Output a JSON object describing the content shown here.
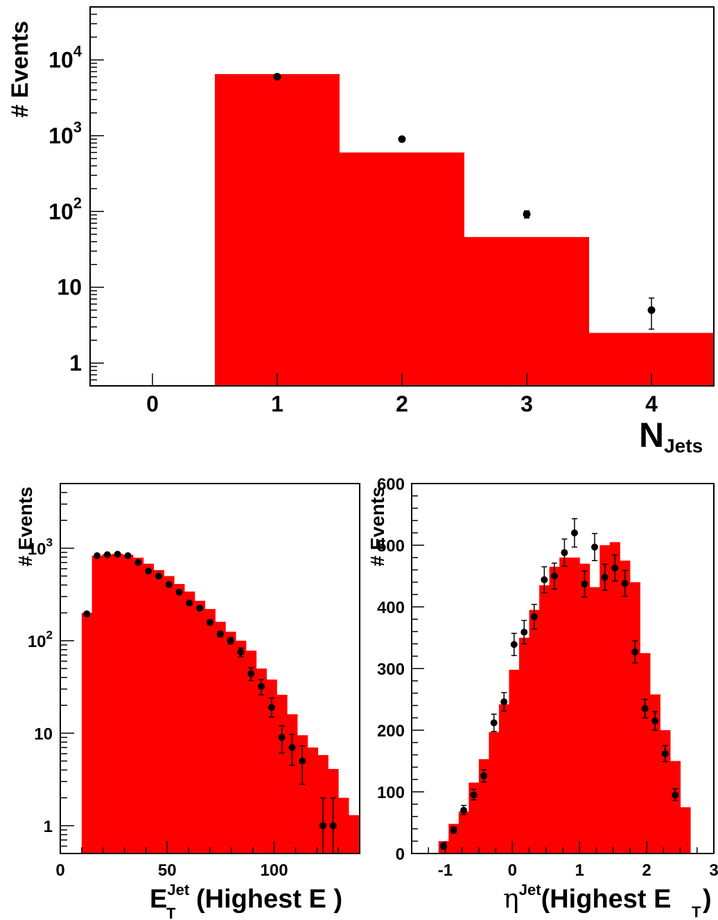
{
  "colors": {
    "histogram_fill": "#ff0000",
    "marker": "#000000",
    "frame": "#000000"
  },
  "chart_data": [
    {
      "type": "bar",
      "ylog": true,
      "xlim": [
        -0.5,
        4.5
      ],
      "ylim": [
        0.5,
        50000
      ],
      "xlabel_main": "N",
      "xlabel_sub": "Jets",
      "ylabel": "# Events",
      "x_ticks": [
        "0",
        "1",
        "2",
        "3",
        "4"
      ],
      "y_ticks": [
        {
          "value": 1,
          "base": "1",
          "exp": ""
        },
        {
          "value": 10,
          "base": "10",
          "exp": ""
        },
        {
          "value": 100,
          "base": "10",
          "exp": "2"
        },
        {
          "value": 1000,
          "base": "10",
          "exp": "3"
        },
        {
          "value": 10000,
          "base": "10",
          "exp": "4"
        }
      ],
      "bins": [
        {
          "lo": 0.5,
          "hi": 1.5,
          "value": 6500
        },
        {
          "lo": 1.5,
          "hi": 2.5,
          "value": 600
        },
        {
          "lo": 2.5,
          "hi": 3.5,
          "value": 46
        },
        {
          "lo": 3.5,
          "hi": 4.5,
          "value": 2.5
        }
      ],
      "points": [
        {
          "x": 1,
          "y": 6000,
          "lo": 5920,
          "hi": 6080
        },
        {
          "x": 2,
          "y": 900,
          "lo": 870,
          "hi": 930
        },
        {
          "x": 3,
          "y": 92,
          "lo": 82,
          "hi": 102
        },
        {
          "x": 4,
          "y": 5,
          "lo": 2.8,
          "hi": 7.2
        }
      ]
    },
    {
      "type": "bar",
      "ylog": true,
      "xlim": [
        0,
        140
      ],
      "ylim": [
        0.5,
        5000
      ],
      "xlabel_main": "E",
      "xlabel_sup": "Jet",
      "xlabel_sub": "T",
      "xlabel_rest": "(Highest E )",
      "ylabel": "# Events",
      "x_ticks": [
        "0",
        "50",
        "100"
      ],
      "y_ticks": [
        {
          "value": 1,
          "base": "1",
          "exp": ""
        },
        {
          "value": 10,
          "base": "10",
          "exp": ""
        },
        {
          "value": 100,
          "base": "10",
          "exp": "2"
        },
        {
          "value": 1000,
          "base": "10",
          "exp": "3"
        }
      ],
      "bin_start": 10,
      "bin_width": 4.8,
      "bin_values": [
        200,
        830,
        860,
        870,
        850,
        790,
        680,
        580,
        500,
        410,
        340,
        270,
        220,
        160,
        125,
        100,
        78,
        50,
        38,
        26,
        16,
        9.5,
        7,
        5.8,
        4.1,
        2.0,
        1.3
      ],
      "points": [
        {
          "x": 12.4,
          "y": 195,
          "lo": 186,
          "hi": 204
        },
        {
          "x": 17.2,
          "y": 830,
          "lo": 805,
          "hi": 855
        },
        {
          "x": 22,
          "y": 850,
          "lo": 825,
          "hi": 875
        },
        {
          "x": 26.8,
          "y": 860,
          "lo": 835,
          "hi": 885
        },
        {
          "x": 31.6,
          "y": 830,
          "lo": 805,
          "hi": 855
        },
        {
          "x": 36.4,
          "y": 700,
          "lo": 675,
          "hi": 725
        },
        {
          "x": 41.2,
          "y": 565,
          "lo": 544,
          "hi": 586
        },
        {
          "x": 46,
          "y": 500,
          "lo": 480,
          "hi": 520
        },
        {
          "x": 50.8,
          "y": 405,
          "lo": 388,
          "hi": 422
        },
        {
          "x": 55.6,
          "y": 335,
          "lo": 320,
          "hi": 350
        },
        {
          "x": 60.4,
          "y": 255,
          "lo": 242,
          "hi": 268
        },
        {
          "x": 65.2,
          "y": 225,
          "lo": 213,
          "hi": 237
        },
        {
          "x": 70,
          "y": 158,
          "lo": 148,
          "hi": 168
        },
        {
          "x": 74.8,
          "y": 118,
          "lo": 110,
          "hi": 126
        },
        {
          "x": 79.6,
          "y": 100,
          "lo": 92,
          "hi": 108
        },
        {
          "x": 84.4,
          "y": 75,
          "lo": 67,
          "hi": 83
        },
        {
          "x": 89.2,
          "y": 44,
          "lo": 37,
          "hi": 51
        },
        {
          "x": 94,
          "y": 32,
          "lo": 26,
          "hi": 38
        },
        {
          "x": 98.8,
          "y": 19,
          "lo": 15,
          "hi": 24
        },
        {
          "x": 103.6,
          "y": 9,
          "lo": 6.1,
          "hi": 12
        },
        {
          "x": 108.4,
          "y": 7,
          "lo": 4.5,
          "hi": 9.7
        },
        {
          "x": 113.2,
          "y": 5,
          "lo": 2.8,
          "hi": 7.3
        },
        {
          "x": 122.8,
          "y": 1,
          "lo": 0.5,
          "hi": 2
        },
        {
          "x": 127.6,
          "y": 1,
          "lo": 0.5,
          "hi": 2
        }
      ]
    },
    {
      "type": "bar",
      "ylog": false,
      "xlim": [
        -1.5,
        3
      ],
      "ylim": [
        0,
        600
      ],
      "xlabel_main": "η",
      "xlabel_sup": "Jet",
      "xlabel_rest": "(Highest E",
      "xlabel_sub2": "T",
      "xlabel_end": ")",
      "ylabel": "# Events",
      "x_ticks": [
        {
          "value": -1,
          "label": "-1"
        },
        {
          "value": 0,
          "label": "0"
        },
        {
          "value": 1,
          "label": "1"
        },
        {
          "value": 2,
          "label": "2"
        },
        {
          "value": 3,
          "label": "3"
        }
      ],
      "y_ticks": [
        "0",
        "100",
        "200",
        "300",
        "400",
        "500",
        "600"
      ],
      "bin_start": -1.1,
      "bin_width": 0.15,
      "bin_values": [
        20,
        48,
        68,
        115,
        153,
        197,
        242,
        298,
        350,
        395,
        435,
        465,
        480,
        480,
        470,
        432,
        500,
        505,
        475,
        440,
        325,
        258,
        200,
        150,
        75
      ],
      "points": [
        {
          "x": -1.025,
          "y": 12,
          "lo": 7,
          "hi": 17
        },
        {
          "x": -0.875,
          "y": 38,
          "lo": 33,
          "hi": 43
        },
        {
          "x": -0.725,
          "y": 70,
          "lo": 63,
          "hi": 78
        },
        {
          "x": -0.575,
          "y": 95,
          "lo": 87,
          "hi": 104
        },
        {
          "x": -0.425,
          "y": 126,
          "lo": 116,
          "hi": 136
        },
        {
          "x": -0.275,
          "y": 212,
          "lo": 198,
          "hi": 226
        },
        {
          "x": -0.125,
          "y": 246,
          "lo": 231,
          "hi": 261
        },
        {
          "x": 0.025,
          "y": 339,
          "lo": 321,
          "hi": 357
        },
        {
          "x": 0.175,
          "y": 359,
          "lo": 340,
          "hi": 378
        },
        {
          "x": 0.325,
          "y": 384,
          "lo": 364,
          "hi": 404
        },
        {
          "x": 0.475,
          "y": 444,
          "lo": 423,
          "hi": 465
        },
        {
          "x": 0.625,
          "y": 450,
          "lo": 429,
          "hi": 471
        },
        {
          "x": 0.775,
          "y": 488,
          "lo": 466,
          "hi": 510
        },
        {
          "x": 0.925,
          "y": 520,
          "lo": 497,
          "hi": 543
        },
        {
          "x": 1.075,
          "y": 437,
          "lo": 416,
          "hi": 458
        },
        {
          "x": 1.225,
          "y": 497,
          "lo": 475,
          "hi": 519
        },
        {
          "x": 1.375,
          "y": 448,
          "lo": 427,
          "hi": 469
        },
        {
          "x": 1.525,
          "y": 463,
          "lo": 442,
          "hi": 484
        },
        {
          "x": 1.675,
          "y": 438,
          "lo": 417,
          "hi": 459
        },
        {
          "x": 1.825,
          "y": 327,
          "lo": 309,
          "hi": 345
        },
        {
          "x": 1.975,
          "y": 235,
          "lo": 220,
          "hi": 250
        },
        {
          "x": 2.125,
          "y": 215,
          "lo": 200,
          "hi": 230
        },
        {
          "x": 2.275,
          "y": 162,
          "lo": 149,
          "hi": 175
        },
        {
          "x": 2.425,
          "y": 95,
          "lo": 86,
          "hi": 105
        }
      ]
    }
  ]
}
